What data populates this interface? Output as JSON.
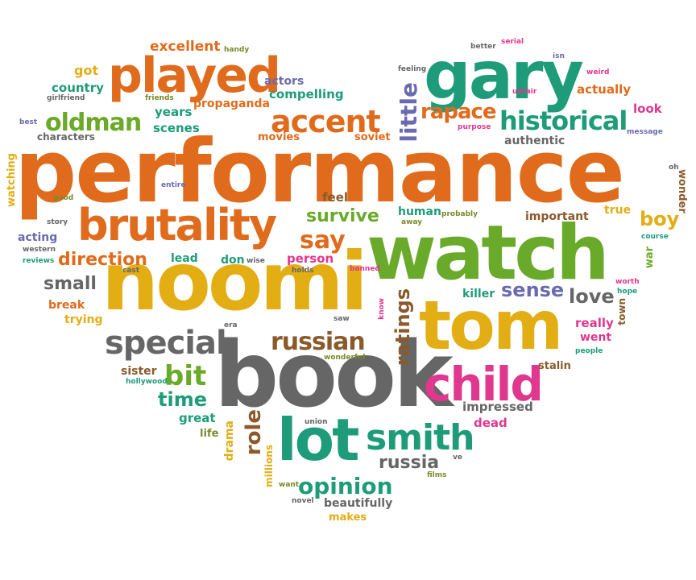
{
  "words": {
    "performance": "performance",
    "book": "book",
    "noomi": "noomi",
    "watch": "watch",
    "tom": "tom",
    "gary": "gary",
    "played": "played",
    "brutality": "brutality",
    "child": "child",
    "lot": "lot",
    "smith": "smith",
    "accent": "accent",
    "oldman": "oldman",
    "historical": "historical",
    "rapace": "rapace",
    "little": "little",
    "special": "special",
    "russian": "russian",
    "direction": "direction",
    "survive": "survive",
    "say": "say",
    "opinion": "opinion",
    "russia": "russia",
    "ratings": "ratings",
    "role": "role",
    "bit": "bit",
    "time": "time",
    "love": "love",
    "sense": "sense",
    "boy": "boy",
    "small": "small",
    "excellent": "excellent",
    "got": "got",
    "country": "country",
    "actors": "actors",
    "compelling": "compelling",
    "propaganda": "propaganda",
    "years": "years",
    "scenes": "scenes",
    "movies": "movies",
    "soviet": "soviet",
    "characters": "characters",
    "actually": "actually",
    "look": "look",
    "authentic": "authentic",
    "important": "important",
    "true": "true",
    "feel": "feel",
    "human": "human",
    "killer": "killer",
    "really": "really",
    "went": "went",
    "impressed": "impressed",
    "dead": "dead",
    "great": "great",
    "drama": "drama",
    "millions": "millions",
    "sister": "sister",
    "trying": "trying",
    "break": "break",
    "acting": "acting",
    "lead": "lead",
    "don": "don",
    "person": "person",
    "beautifully": "beautifully",
    "makes": "makes",
    "stalin": "stalin",
    "life": "life",
    "watching": "watching",
    "wonder": "wonder",
    "war": "war",
    "town": "town",
    "handy": "handy",
    "girlfriend": "girlfriend",
    "friends": "friends",
    "best": "best",
    "entire": "entire",
    "good": "good",
    "story": "story",
    "western": "western",
    "reviews": "reviews",
    "cast": "cast",
    "wise": "wise",
    "holds": "holds",
    "banned": "banned",
    "probably": "probably",
    "away": "away",
    "course": "course",
    "worth": "worth",
    "hope": "hope",
    "people": "people",
    "era": "era",
    "saw": "saw",
    "know": "know",
    "wonderful": "wonderful",
    "hollywood": "hollywood",
    "union": "union",
    "ve": "ve",
    "films": "films",
    "want": "want",
    "novel": "novel",
    "better": "better",
    "serial": "serial",
    "isn": "isn",
    "weird": "weird",
    "unfair": "unfair",
    "feeling": "feeling",
    "purpose": "purpose",
    "message": "message",
    "oh": "oh"
  }
}
